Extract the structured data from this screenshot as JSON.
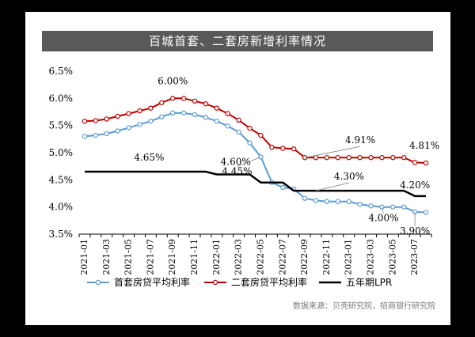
{
  "page_title": "百城首套、二套房新增利率情况",
  "source_note": "数据来源：贝壳研究院，招商银行研究院",
  "chart_data": {
    "type": "line",
    "title": "百城首套、二套房新增利率情况",
    "xlabel": "",
    "ylabel": "",
    "ylim": [
      3.5,
      6.5
    ],
    "yticks": [
      "3.5%",
      "4.0%",
      "4.5%",
      "5.0%",
      "5.5%",
      "6.0%",
      "6.5%"
    ],
    "x": [
      "2021-01",
      "2021-02",
      "2021-03",
      "2021-04",
      "2021-05",
      "2021-06",
      "2021-07",
      "2021-08",
      "2021-09",
      "2021-10",
      "2021-11",
      "2021-12",
      "2022-01",
      "2022-02",
      "2022-03",
      "2022-04",
      "2022-05",
      "2022-06",
      "2022-07",
      "2022-08",
      "2022-09",
      "2022-10",
      "2022-11",
      "2022-12",
      "2023-01",
      "2023-02",
      "2023-03",
      "2023-04",
      "2023-05",
      "2023-06",
      "2023-07",
      "2023-08"
    ],
    "xtick_labels": [
      "2021-01",
      "2021-03",
      "2021-05",
      "2021-07",
      "2021-09",
      "2021-11",
      "2022-01",
      "2022-03",
      "2022-05",
      "2022-07",
      "2022-09",
      "2022-11",
      "2023-01",
      "2023-03",
      "2023-05",
      "2023-07"
    ],
    "legend_position": "bottom",
    "series": [
      {
        "name": "首套房贷平均利率",
        "color": "#5b9bd5",
        "marker": "circle",
        "values": [
          5.3,
          5.32,
          5.35,
          5.4,
          5.46,
          5.52,
          5.58,
          5.66,
          5.73,
          5.73,
          5.7,
          5.65,
          5.58,
          5.49,
          5.38,
          5.18,
          4.92,
          4.45,
          4.36,
          4.33,
          4.16,
          4.12,
          4.1,
          4.1,
          4.1,
          4.05,
          4.02,
          4.0,
          4.0,
          4.0,
          3.91,
          3.9
        ]
      },
      {
        "name": "二套房贷平均利率",
        "color": "#c00000",
        "marker": "circle",
        "values": [
          5.58,
          5.59,
          5.62,
          5.67,
          5.72,
          5.77,
          5.82,
          5.92,
          6.0,
          6.0,
          5.95,
          5.9,
          5.82,
          5.72,
          5.6,
          5.45,
          5.32,
          5.1,
          5.08,
          5.07,
          4.91,
          4.91,
          4.91,
          4.91,
          4.91,
          4.91,
          4.91,
          4.91,
          4.91,
          4.91,
          4.82,
          4.81
        ]
      },
      {
        "name": "五年期LPR",
        "color": "#000000",
        "marker": "none",
        "values": [
          4.65,
          4.65,
          4.65,
          4.65,
          4.65,
          4.65,
          4.65,
          4.65,
          4.65,
          4.65,
          4.65,
          4.65,
          4.6,
          4.6,
          4.6,
          4.6,
          4.45,
          4.45,
          4.45,
          4.3,
          4.3,
          4.3,
          4.3,
          4.3,
          4.3,
          4.3,
          4.3,
          4.3,
          4.3,
          4.3,
          4.2,
          4.2
        ]
      }
    ],
    "annotations": [
      "6.00%",
      "4.91%",
      "4.81%",
      "4.65%",
      "4.60%",
      "4.45%",
      "4.30%",
      "4.20%",
      "4.00%",
      "3.90%"
    ]
  }
}
